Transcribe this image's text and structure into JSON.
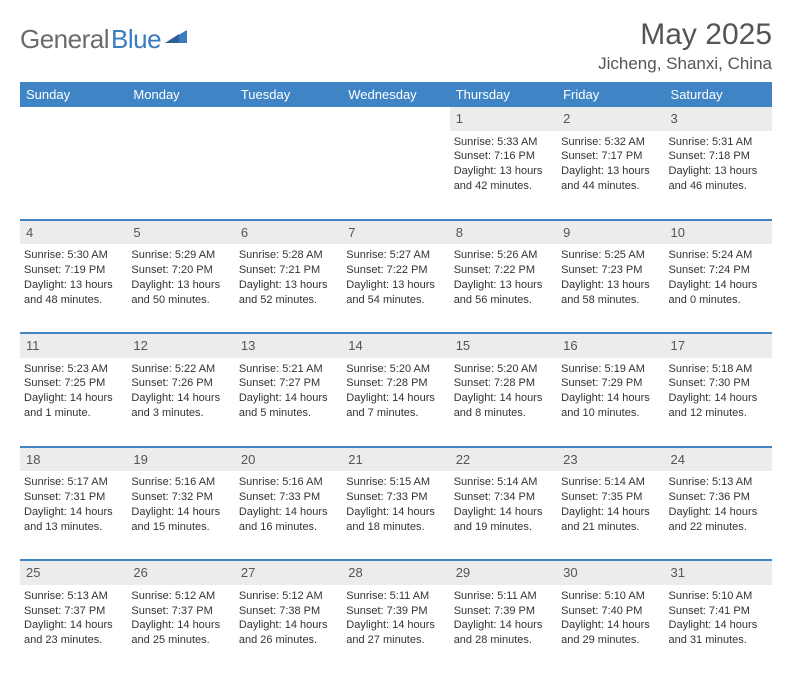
{
  "logo": {
    "text1": "General",
    "text2": "Blue"
  },
  "title": "May 2025",
  "location": "Jicheng, Shanxi, China",
  "colors": {
    "header_bg": "#3f85c6",
    "header_fg": "#ffffff",
    "daynum_bg": "#ececec",
    "text": "#333333",
    "logo_gray": "#6b6b6b",
    "logo_blue": "#3a7cc0"
  },
  "weekdays": [
    "Sunday",
    "Monday",
    "Tuesday",
    "Wednesday",
    "Thursday",
    "Friday",
    "Saturday"
  ],
  "weeks": [
    {
      "nums": [
        "",
        "",
        "",
        "",
        "1",
        "2",
        "3"
      ],
      "info": [
        null,
        null,
        null,
        null,
        {
          "sunrise": "Sunrise: 5:33 AM",
          "sunset": "Sunset: 7:16 PM",
          "day1": "Daylight: 13 hours",
          "day2": "and 42 minutes."
        },
        {
          "sunrise": "Sunrise: 5:32 AM",
          "sunset": "Sunset: 7:17 PM",
          "day1": "Daylight: 13 hours",
          "day2": "and 44 minutes."
        },
        {
          "sunrise": "Sunrise: 5:31 AM",
          "sunset": "Sunset: 7:18 PM",
          "day1": "Daylight: 13 hours",
          "day2": "and 46 minutes."
        }
      ]
    },
    {
      "nums": [
        "4",
        "5",
        "6",
        "7",
        "8",
        "9",
        "10"
      ],
      "info": [
        {
          "sunrise": "Sunrise: 5:30 AM",
          "sunset": "Sunset: 7:19 PM",
          "day1": "Daylight: 13 hours",
          "day2": "and 48 minutes."
        },
        {
          "sunrise": "Sunrise: 5:29 AM",
          "sunset": "Sunset: 7:20 PM",
          "day1": "Daylight: 13 hours",
          "day2": "and 50 minutes."
        },
        {
          "sunrise": "Sunrise: 5:28 AM",
          "sunset": "Sunset: 7:21 PM",
          "day1": "Daylight: 13 hours",
          "day2": "and 52 minutes."
        },
        {
          "sunrise": "Sunrise: 5:27 AM",
          "sunset": "Sunset: 7:22 PM",
          "day1": "Daylight: 13 hours",
          "day2": "and 54 minutes."
        },
        {
          "sunrise": "Sunrise: 5:26 AM",
          "sunset": "Sunset: 7:22 PM",
          "day1": "Daylight: 13 hours",
          "day2": "and 56 minutes."
        },
        {
          "sunrise": "Sunrise: 5:25 AM",
          "sunset": "Sunset: 7:23 PM",
          "day1": "Daylight: 13 hours",
          "day2": "and 58 minutes."
        },
        {
          "sunrise": "Sunrise: 5:24 AM",
          "sunset": "Sunset: 7:24 PM",
          "day1": "Daylight: 14 hours",
          "day2": "and 0 minutes."
        }
      ]
    },
    {
      "nums": [
        "11",
        "12",
        "13",
        "14",
        "15",
        "16",
        "17"
      ],
      "info": [
        {
          "sunrise": "Sunrise: 5:23 AM",
          "sunset": "Sunset: 7:25 PM",
          "day1": "Daylight: 14 hours",
          "day2": "and 1 minute."
        },
        {
          "sunrise": "Sunrise: 5:22 AM",
          "sunset": "Sunset: 7:26 PM",
          "day1": "Daylight: 14 hours",
          "day2": "and 3 minutes."
        },
        {
          "sunrise": "Sunrise: 5:21 AM",
          "sunset": "Sunset: 7:27 PM",
          "day1": "Daylight: 14 hours",
          "day2": "and 5 minutes."
        },
        {
          "sunrise": "Sunrise: 5:20 AM",
          "sunset": "Sunset: 7:28 PM",
          "day1": "Daylight: 14 hours",
          "day2": "and 7 minutes."
        },
        {
          "sunrise": "Sunrise: 5:20 AM",
          "sunset": "Sunset: 7:28 PM",
          "day1": "Daylight: 14 hours",
          "day2": "and 8 minutes."
        },
        {
          "sunrise": "Sunrise: 5:19 AM",
          "sunset": "Sunset: 7:29 PM",
          "day1": "Daylight: 14 hours",
          "day2": "and 10 minutes."
        },
        {
          "sunrise": "Sunrise: 5:18 AM",
          "sunset": "Sunset: 7:30 PM",
          "day1": "Daylight: 14 hours",
          "day2": "and 12 minutes."
        }
      ]
    },
    {
      "nums": [
        "18",
        "19",
        "20",
        "21",
        "22",
        "23",
        "24"
      ],
      "info": [
        {
          "sunrise": "Sunrise: 5:17 AM",
          "sunset": "Sunset: 7:31 PM",
          "day1": "Daylight: 14 hours",
          "day2": "and 13 minutes."
        },
        {
          "sunrise": "Sunrise: 5:16 AM",
          "sunset": "Sunset: 7:32 PM",
          "day1": "Daylight: 14 hours",
          "day2": "and 15 minutes."
        },
        {
          "sunrise": "Sunrise: 5:16 AM",
          "sunset": "Sunset: 7:33 PM",
          "day1": "Daylight: 14 hours",
          "day2": "and 16 minutes."
        },
        {
          "sunrise": "Sunrise: 5:15 AM",
          "sunset": "Sunset: 7:33 PM",
          "day1": "Daylight: 14 hours",
          "day2": "and 18 minutes."
        },
        {
          "sunrise": "Sunrise: 5:14 AM",
          "sunset": "Sunset: 7:34 PM",
          "day1": "Daylight: 14 hours",
          "day2": "and 19 minutes."
        },
        {
          "sunrise": "Sunrise: 5:14 AM",
          "sunset": "Sunset: 7:35 PM",
          "day1": "Daylight: 14 hours",
          "day2": "and 21 minutes."
        },
        {
          "sunrise": "Sunrise: 5:13 AM",
          "sunset": "Sunset: 7:36 PM",
          "day1": "Daylight: 14 hours",
          "day2": "and 22 minutes."
        }
      ]
    },
    {
      "nums": [
        "25",
        "26",
        "27",
        "28",
        "29",
        "30",
        "31"
      ],
      "info": [
        {
          "sunrise": "Sunrise: 5:13 AM",
          "sunset": "Sunset: 7:37 PM",
          "day1": "Daylight: 14 hours",
          "day2": "and 23 minutes."
        },
        {
          "sunrise": "Sunrise: 5:12 AM",
          "sunset": "Sunset: 7:37 PM",
          "day1": "Daylight: 14 hours",
          "day2": "and 25 minutes."
        },
        {
          "sunrise": "Sunrise: 5:12 AM",
          "sunset": "Sunset: 7:38 PM",
          "day1": "Daylight: 14 hours",
          "day2": "and 26 minutes."
        },
        {
          "sunrise": "Sunrise: 5:11 AM",
          "sunset": "Sunset: 7:39 PM",
          "day1": "Daylight: 14 hours",
          "day2": "and 27 minutes."
        },
        {
          "sunrise": "Sunrise: 5:11 AM",
          "sunset": "Sunset: 7:39 PM",
          "day1": "Daylight: 14 hours",
          "day2": "and 28 minutes."
        },
        {
          "sunrise": "Sunrise: 5:10 AM",
          "sunset": "Sunset: 7:40 PM",
          "day1": "Daylight: 14 hours",
          "day2": "and 29 minutes."
        },
        {
          "sunrise": "Sunrise: 5:10 AM",
          "sunset": "Sunset: 7:41 PM",
          "day1": "Daylight: 14 hours",
          "day2": "and 31 minutes."
        }
      ]
    }
  ]
}
